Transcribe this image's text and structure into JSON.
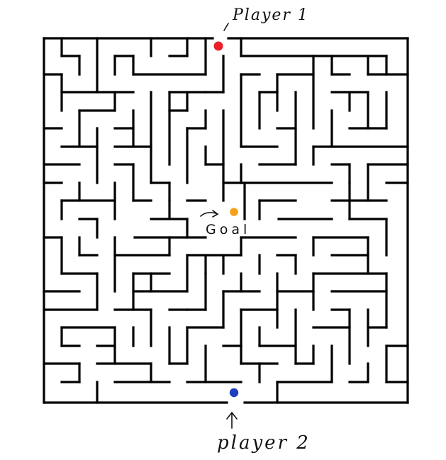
{
  "labels": {
    "player1": "Player 1",
    "player2": "player 2",
    "goal": "Goal"
  },
  "colors": {
    "player1": "#e8202a",
    "player2": "#1f3fbf",
    "goal": "#f4a21c",
    "wall": "#000000",
    "background": "#ffffff"
  },
  "maze": {
    "columns": 20,
    "rows": 20,
    "entrances": [
      "top",
      "bottom"
    ]
  },
  "markers": [
    {
      "name": "player1-marker",
      "label": "Player 1",
      "color": "#e8202a"
    },
    {
      "name": "goal-marker",
      "label": "Goal",
      "color": "#f4a21c"
    },
    {
      "name": "player2-marker",
      "label": "player 2",
      "color": "#1f3fbf"
    }
  ]
}
